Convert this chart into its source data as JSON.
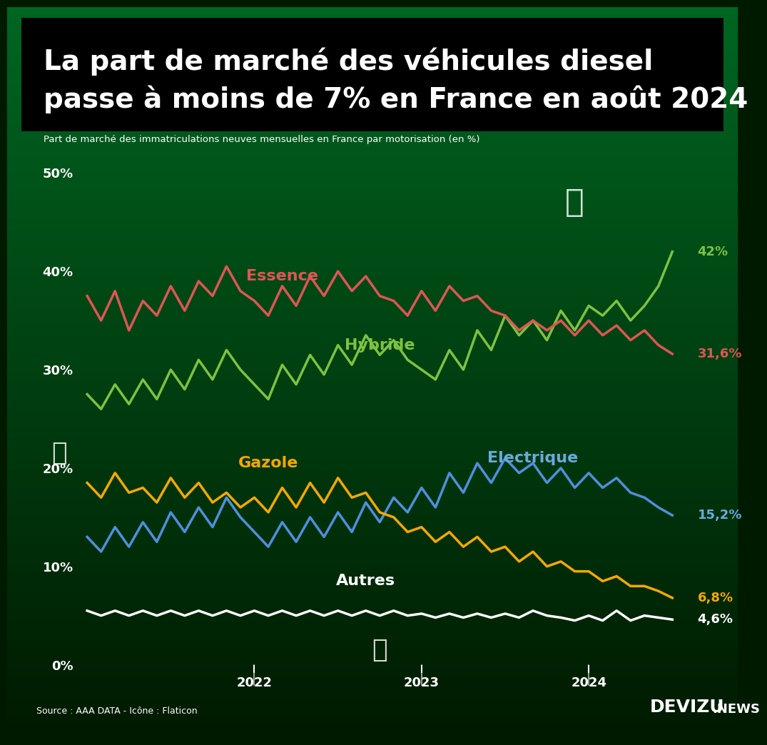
{
  "title_line1": "La part de marché des véhicules diesel",
  "title_line2": "passe à moins de 7% en France en août 2024",
  "subtitle": "Part de marché des immatriculations neuves mensuelles en France par motorisation (en %)",
  "source": "Source : AAA DATA - Icône : Flaticon",
  "brand": "DEVIZU",
  "brand_suffix": ".NEWS",
  "ylim": [
    0,
    52
  ],
  "yticks": [
    0,
    10,
    20,
    30,
    40,
    50
  ],
  "bg_color_top": "#00a550",
  "bg_color_bottom": "#001a00",
  "title_bg": "#000000",
  "series": {
    "Hybride": {
      "color": "#7dc242",
      "label_color": "#7dc242",
      "end_value": "42%",
      "end_color": "#7dc242",
      "data": [
        27.5,
        26.0,
        28.5,
        26.5,
        29.0,
        27.0,
        30.0,
        28.0,
        31.0,
        29.0,
        32.0,
        30.0,
        28.5,
        27.0,
        30.5,
        28.5,
        31.5,
        29.5,
        32.5,
        30.5,
        33.5,
        31.5,
        33.0,
        31.0,
        30.0,
        29.0,
        32.0,
        30.0,
        34.0,
        32.0,
        35.5,
        33.5,
        35.0,
        33.0,
        36.0,
        34.0,
        36.5,
        35.5,
        37.0,
        35.0,
        36.5,
        38.5,
        42.0
      ]
    },
    "Essence": {
      "color": "#e05555",
      "label_color": "#e05555",
      "end_value": "31,6%",
      "end_color": "#e05555",
      "data": [
        37.5,
        35.0,
        38.0,
        34.0,
        37.0,
        35.5,
        38.5,
        36.0,
        39.0,
        37.5,
        40.5,
        38.0,
        37.0,
        35.5,
        38.5,
        36.5,
        39.5,
        37.5,
        40.0,
        38.0,
        39.5,
        37.5,
        37.0,
        35.5,
        38.0,
        36.0,
        38.5,
        37.0,
        37.5,
        36.0,
        35.5,
        34.0,
        35.0,
        34.0,
        35.0,
        33.5,
        35.0,
        33.5,
        34.5,
        33.0,
        34.0,
        32.5,
        31.6
      ]
    },
    "Electrique": {
      "color": "#4f8fde",
      "label_color": "#6baae0",
      "end_value": "15,2%",
      "end_color": "#6baae0",
      "data": [
        13.0,
        11.5,
        14.0,
        12.0,
        14.5,
        12.5,
        15.5,
        13.5,
        16.0,
        14.0,
        17.0,
        15.0,
        13.5,
        12.0,
        14.5,
        12.5,
        15.0,
        13.0,
        15.5,
        13.5,
        16.5,
        14.5,
        17.0,
        15.5,
        18.0,
        16.0,
        19.5,
        17.5,
        20.5,
        18.5,
        21.0,
        19.5,
        20.5,
        18.5,
        20.0,
        18.0,
        19.5,
        18.0,
        19.0,
        17.5,
        17.0,
        16.0,
        15.2
      ]
    },
    "Gazole": {
      "color": "#f5a800",
      "label_color": "#f5a800",
      "end_value": "6,8%",
      "end_color": "#f5a800",
      "data": [
        18.5,
        17.0,
        19.5,
        17.5,
        18.0,
        16.5,
        19.0,
        17.0,
        18.5,
        16.5,
        17.5,
        16.0,
        17.0,
        15.5,
        18.0,
        16.0,
        18.5,
        16.5,
        19.0,
        17.0,
        17.5,
        15.5,
        15.0,
        13.5,
        14.0,
        12.5,
        13.5,
        12.0,
        13.0,
        11.5,
        12.0,
        10.5,
        11.5,
        10.0,
        10.5,
        9.5,
        9.5,
        8.5,
        9.0,
        8.0,
        8.0,
        7.5,
        6.8
      ]
    },
    "Autres": {
      "color": "#ffffff",
      "label_color": "#ffffff",
      "end_value": "4,6%",
      "end_color": "#ffffff",
      "data": [
        5.5,
        5.0,
        5.5,
        5.0,
        5.5,
        5.0,
        5.5,
        5.0,
        5.5,
        5.0,
        5.5,
        5.0,
        5.5,
        5.0,
        5.5,
        5.0,
        5.5,
        5.0,
        5.5,
        5.0,
        5.5,
        5.0,
        5.5,
        5.0,
        5.2,
        4.8,
        5.2,
        4.8,
        5.2,
        4.8,
        5.2,
        4.8,
        5.5,
        5.0,
        4.8,
        4.5,
        5.0,
        4.5,
        5.5,
        4.5,
        5.0,
        4.8,
        4.6
      ]
    }
  },
  "x_ticks": [
    12,
    24,
    36
  ],
  "x_tick_labels": [
    "2022",
    "2023",
    "2024"
  ],
  "n_points": 43
}
